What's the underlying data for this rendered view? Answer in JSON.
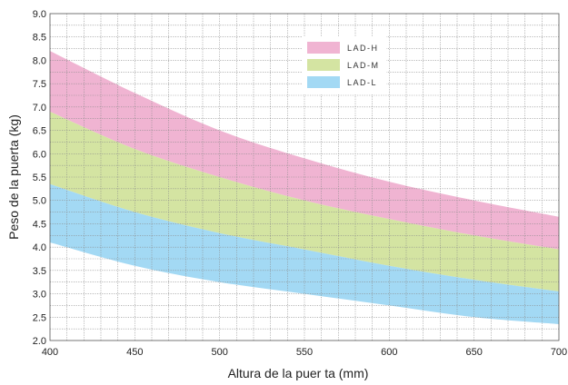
{
  "chart_data": {
    "type": "area",
    "xlabel": "Altura de la puer  ta (mm)",
    "ylabel": "Peso de la puerta (kg)",
    "xlim": [
      400,
      700
    ],
    "ylim": [
      2.0,
      9.0
    ],
    "x_ticks": [
      "400",
      "450",
      "500",
      "550",
      "600",
      "650",
      "700"
    ],
    "y_ticks": [
      "2.0",
      "2.5",
      "3.0",
      "3.5",
      "4.0",
      "4.5",
      "5.0",
      "5.5",
      "6.0",
      "6.5",
      "7.0",
      "7.5",
      "8.0",
      "8.5",
      "9.0"
    ],
    "x_minor_step": 10,
    "y_minor_step": 0.25,
    "grid": true,
    "legend_position": "top-right",
    "x": [
      400,
      450,
      500,
      550,
      600,
      650,
      700
    ],
    "series": [
      {
        "name": "LAD-H",
        "color": "#f0b4d2",
        "lower": [
          6.9,
          6.1,
          5.5,
          5.0,
          4.6,
          4.25,
          3.95
        ],
        "upper": [
          8.2,
          7.3,
          6.5,
          5.9,
          5.4,
          5.0,
          4.65
        ]
      },
      {
        "name": "LAD-M",
        "color": "#d4e4a2",
        "lower": [
          5.35,
          4.75,
          4.3,
          3.95,
          3.6,
          3.3,
          3.05
        ],
        "upper": [
          6.9,
          6.1,
          5.5,
          5.0,
          4.6,
          4.25,
          3.95
        ]
      },
      {
        "name": "LAD-L",
        "color": "#a3d9f4",
        "lower": [
          4.1,
          3.6,
          3.25,
          3.0,
          2.75,
          2.5,
          2.35
        ],
        "upper": [
          5.35,
          4.75,
          4.3,
          3.95,
          3.6,
          3.3,
          3.05
        ]
      }
    ]
  }
}
